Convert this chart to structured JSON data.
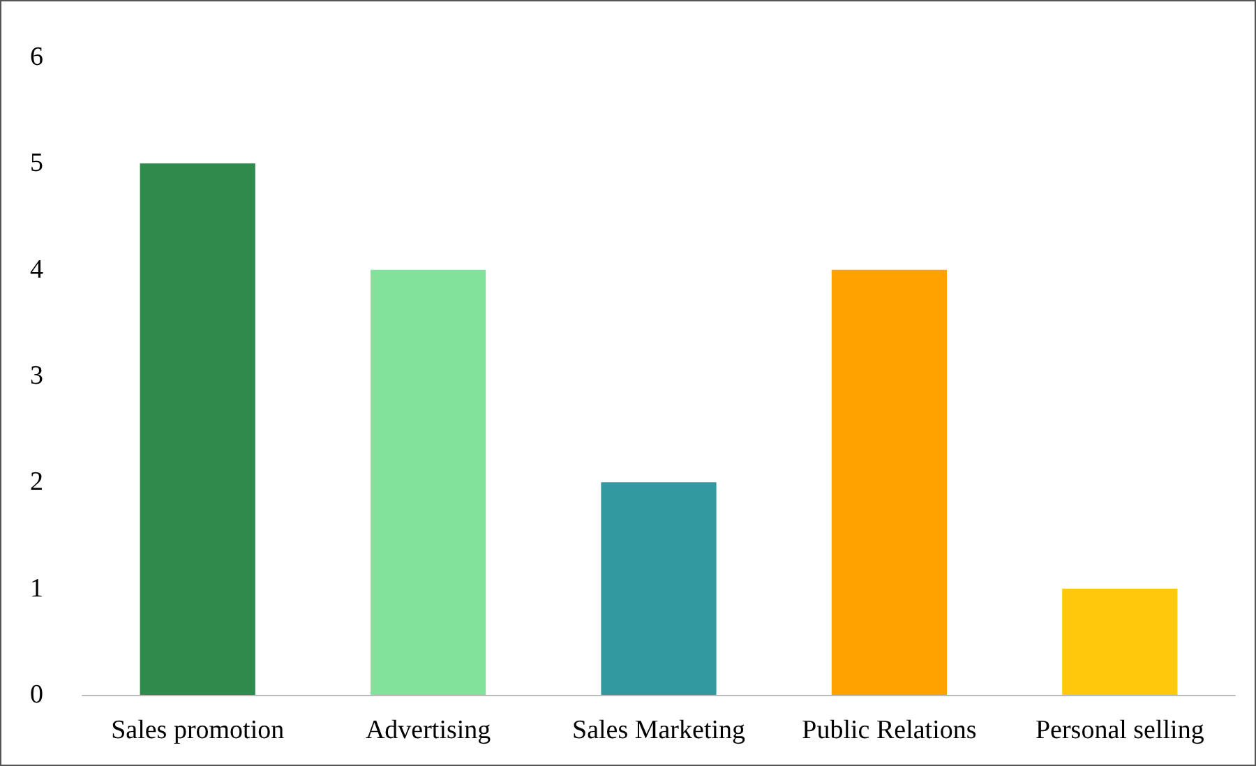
{
  "chart_data": {
    "type": "bar",
    "categories": [
      "Sales promotion",
      "Advertising",
      "Sales Marketing",
      "Public Relations",
      "Personal selling"
    ],
    "values": [
      5,
      4,
      2,
      4,
      1
    ],
    "colors": [
      "#2e8b4c",
      "#82e29c",
      "#3399a0",
      "#ffa200",
      "#ffc80a"
    ],
    "ylim": [
      0,
      6
    ],
    "yticks": [
      0,
      1,
      2,
      3,
      4,
      5,
      6
    ],
    "grid": false
  }
}
